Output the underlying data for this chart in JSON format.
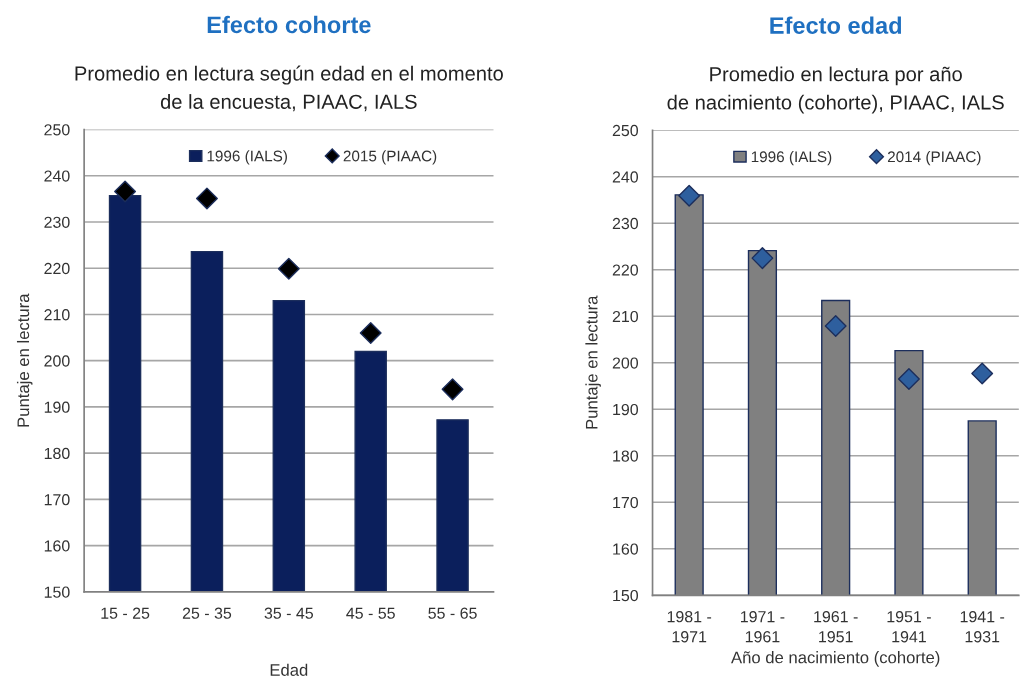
{
  "chart_data": [
    {
      "type": "bar",
      "title": "Efecto cohorte",
      "subtitle": "Promedio en lectura según edad en el momento\nde la encuesta, PIAAC, IALS",
      "xlabel": "Edad",
      "ylabel": "Puntaje en lectura",
      "categories": [
        "15 - 25",
        "25 - 35",
        "35 - 45",
        "45 - 55",
        "55 - 65"
      ],
      "series": [
        {
          "name": "1996 (IALS)",
          "color": "#0b1f5c",
          "values": [
            235.7,
            223.6,
            213.0,
            202.0,
            187.2
          ]
        },
        {
          "name": "2015 (PIAAC)",
          "type": "scatter",
          "color": "#000000",
          "values": [
            236.6,
            235.1,
            219.9,
            206.0,
            193.8
          ]
        }
      ],
      "ylim": [
        150,
        250
      ],
      "yticks": [
        150,
        160,
        170,
        180,
        190,
        200,
        210,
        220,
        230,
        240,
        250
      ],
      "grid": "y",
      "legend": "top",
      "marker": "diamond"
    },
    {
      "type": "bar",
      "title": "Efecto edad",
      "subtitle": "Promedio en lectura por año\nde nacimiento (cohorte), PIAAC, IALS",
      "xlabel": "Año de nacimiento (cohorte)",
      "ylabel": "Puntaje en lectura",
      "categories": [
        "1981 -\n1971",
        "1971 -\n1961",
        "1961 -\n1951",
        "1951 -\n1941",
        "1941 -\n1931"
      ],
      "series": [
        {
          "name": "1996 (IALS)",
          "color": "#808080",
          "values": [
            236.1,
            224.1,
            213.4,
            202.6,
            187.5
          ]
        },
        {
          "name": "2014 (PIAAC)",
          "type": "scatter",
          "color": "#2e5f9e",
          "values": [
            235.9,
            222.5,
            207.9,
            196.5,
            197.7
          ]
        }
      ],
      "ylim": [
        150,
        250
      ],
      "yticks": [
        150,
        160,
        170,
        180,
        190,
        200,
        210,
        220,
        230,
        240,
        250
      ],
      "grid": "y",
      "legend": "top",
      "marker": "diamond"
    }
  ]
}
